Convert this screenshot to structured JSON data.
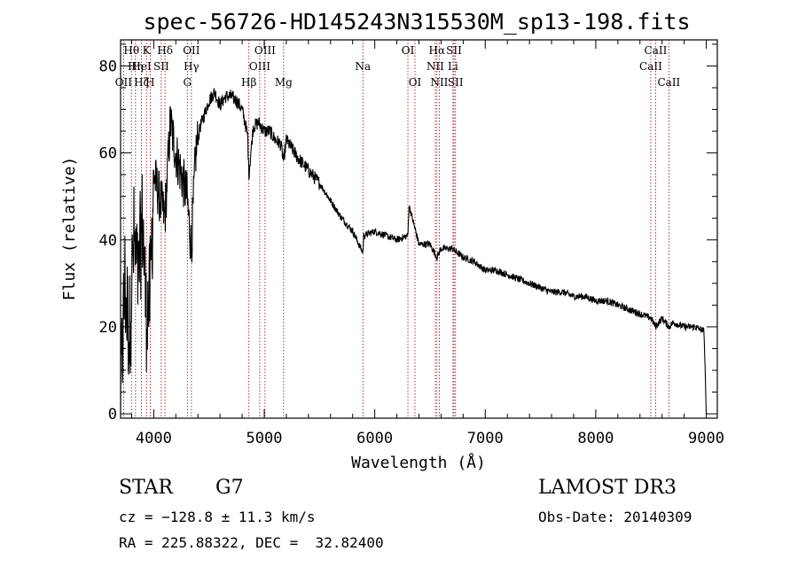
{
  "chart_data": {
    "type": "line",
    "title": "spec-56726-HD145243N315530M_sp13-198.fits",
    "xlabel": "Wavelength (Å)",
    "ylabel": "Flux (relative)",
    "xlim": [
      3700,
      9100
    ],
    "ylim": [
      -1,
      86
    ],
    "xticks": [
      4000,
      5000,
      6000,
      7000,
      8000,
      9000
    ],
    "xtick_labels": [
      "4000",
      "5000",
      "6000",
      "7000",
      "8000",
      "9000"
    ],
    "yticks": [
      0,
      20,
      40,
      60,
      80
    ],
    "ytick_labels": [
      "0",
      "20",
      "40",
      "60",
      "80"
    ],
    "series": [
      {
        "name": "flux",
        "x": [
          3700,
          3740,
          3780,
          3820,
          3860,
          3900,
          3933,
          3968,
          4000,
          4050,
          4101,
          4150,
          4200,
          4250,
          4300,
          4340,
          4380,
          4420,
          4460,
          4500,
          4550,
          4600,
          4650,
          4700,
          4750,
          4800,
          4850,
          4861,
          4900,
          4950,
          5000,
          5050,
          5100,
          5150,
          5175,
          5200,
          5300,
          5400,
          5500,
          5600,
          5700,
          5800,
          5893,
          5900,
          6000,
          6100,
          6200,
          6300,
          6310,
          6400,
          6500,
          6563,
          6600,
          6700,
          6800,
          6900,
          7000,
          7100,
          7200,
          7300,
          7400,
          7500,
          7600,
          7700,
          7800,
          7900,
          8000,
          8100,
          8200,
          8300,
          8400,
          8500,
          8542,
          8600,
          8662,
          8700,
          8800,
          8900,
          8980,
          9000
        ],
        "y": [
          5,
          30,
          18,
          40,
          30,
          45,
          22,
          28,
          55,
          50,
          45,
          67,
          60,
          55,
          50,
          38,
          60,
          66,
          69,
          72,
          74,
          71,
          73,
          73,
          72,
          70,
          64,
          55,
          66,
          67,
          65,
          65,
          63,
          62,
          58,
          63,
          59,
          56,
          53,
          49,
          45,
          42,
          37,
          41,
          42,
          41,
          40,
          41,
          48,
          39,
          39,
          36,
          38,
          38,
          36,
          35,
          33,
          33,
          32,
          31,
          30,
          29,
          28,
          28,
          27,
          27,
          26,
          26,
          25,
          24,
          23,
          22,
          20,
          22,
          20,
          21,
          20,
          20,
          19,
          0
        ]
      }
    ],
    "line_labels": [
      {
        "text": "Hθ",
        "x": 3798,
        "row": 0
      },
      {
        "text": "K",
        "x": 3934,
        "row": 0
      },
      {
        "text": "Hδ",
        "x": 4102,
        "row": 0
      },
      {
        "text": "OII",
        "x": 4341,
        "row": 0
      },
      {
        "text": "OIII",
        "x": 5007,
        "row": 0
      },
      {
        "text": "OI",
        "x": 6300,
        "row": 0
      },
      {
        "text": "Hα",
        "x": 6563,
        "row": 0
      },
      {
        "text": "SII",
        "x": 6717,
        "row": 0
      },
      {
        "text": "CaII",
        "x": 8542,
        "row": 0
      },
      {
        "text": "Hη",
        "x": 3835,
        "row": 1
      },
      {
        "text": "HeI",
        "x": 3889,
        "row": 1
      },
      {
        "text": "SII",
        "x": 4068,
        "row": 1
      },
      {
        "text": "Hγ",
        "x": 4340,
        "row": 1
      },
      {
        "text": "OIII",
        "x": 4959,
        "row": 1
      },
      {
        "text": "Na",
        "x": 5893,
        "row": 1
      },
      {
        "text": "NII",
        "x": 6548,
        "row": 1
      },
      {
        "text": "Li",
        "x": 6708,
        "row": 1
      },
      {
        "text": "CaII",
        "x": 8498,
        "row": 1
      },
      {
        "text": "OII",
        "x": 3727,
        "row": 2
      },
      {
        "text": "Hζ",
        "x": 3889,
        "row": 2
      },
      {
        "text": "H",
        "x": 3968,
        "row": 2
      },
      {
        "text": "G",
        "x": 4304,
        "row": 2
      },
      {
        "text": "Hβ",
        "x": 4861,
        "row": 2
      },
      {
        "text": "Mg",
        "x": 5175,
        "row": 2
      },
      {
        "text": "OI",
        "x": 6364,
        "row": 2
      },
      {
        "text": "NII",
        "x": 6584,
        "row": 2
      },
      {
        "text": "SII",
        "x": 6731,
        "row": 2
      },
      {
        "text": "CaII",
        "x": 8662,
        "row": 2
      }
    ],
    "line_positions": [
      3727,
      3798,
      3835,
      3889,
      3934,
      3968,
      4068,
      4102,
      4304,
      4341,
      4861,
      4959,
      5007,
      5175,
      5893,
      6300,
      6364,
      6548,
      6563,
      6584,
      6708,
      6717,
      6731,
      8498,
      8542,
      8662
    ]
  },
  "info": {
    "object_class": "STAR",
    "subclass": "G7",
    "survey": "LAMOST DR3",
    "cz": "cz = −128.8 ± 11.3 km/s",
    "obs_date": "Obs-Date: 20140309",
    "coords": "RA = 225.88322, DEC =  32.82400"
  },
  "colors": {
    "spectrum": "#000000",
    "line_marker": "#a00000"
  }
}
